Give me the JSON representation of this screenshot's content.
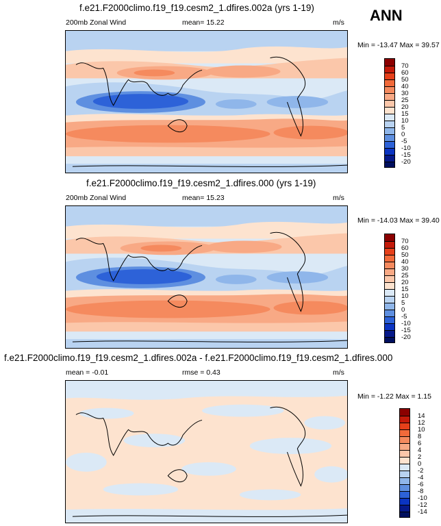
{
  "season": "ANN",
  "panels": [
    {
      "title": "f.e21.F2000climo.f19_f19.cesm2_1.dfires.002a (yrs 1-19)",
      "left_label": "200mb Zonal Wind",
      "stat_text": "mean=  15.22",
      "units": "m/s",
      "minmax": "Min = -13.47 Max =  39.57",
      "colorbar_labels": [
        "70",
        "60",
        "50",
        "40",
        "30",
        "25",
        "20",
        "15",
        "10",
        "5",
        "0",
        "-5",
        "-10",
        "-15",
        "-20"
      ]
    },
    {
      "title": "f.e21.F2000climo.f19_f19.cesm2_1.dfires.000 (yrs 1-19)",
      "left_label": "200mb Zonal Wind",
      "stat_text": "mean=  15.23",
      "units": "m/s",
      "minmax": "Min = -14.03 Max =  39.40",
      "colorbar_labels": [
        "70",
        "60",
        "50",
        "40",
        "30",
        "25",
        "20",
        "15",
        "10",
        "5",
        "0",
        "-5",
        "-10",
        "-15",
        "-20"
      ]
    },
    {
      "title": "f.e21.F2000climo.f19_f19.cesm2_1.dfires.002a - f.e21.F2000climo.f19_f19.cesm2_1.dfires.000",
      "left_label": "mean =  -0.01",
      "stat_text": "rmse =   0.43",
      "units": "m/s",
      "minmax": "Min =  -1.22 Max =   1.15",
      "colorbar_labels": [
        "14",
        "12",
        "10",
        "8",
        "6",
        "4",
        "2",
        "0",
        "-2",
        "-4",
        "-6",
        "-8",
        "-10",
        "-12",
        "-14"
      ]
    }
  ],
  "colors": {
    "field_scale": [
      "#8b0000",
      "#c41a0a",
      "#e6401a",
      "#f26a3a",
      "#f58a5e",
      "#f8a985",
      "#fbc7aa",
      "#fde3cf",
      "#dbe9f6",
      "#b9d3f1",
      "#8fb6ea",
      "#5e8fe0",
      "#2d62d8",
      "#0b34c2",
      "#06198a",
      "#000f5e"
    ],
    "diff_scale": [
      "#8b0000",
      "#c41a0a",
      "#e6401a",
      "#f26a3a",
      "#f58a5e",
      "#f8a985",
      "#fbc7aa",
      "#fde3cf",
      "#dbe9f6",
      "#b9d3f1",
      "#8fb6ea",
      "#5e8fe0",
      "#2d62d8",
      "#0b34c2",
      "#06198a",
      "#000f5e"
    ]
  }
}
